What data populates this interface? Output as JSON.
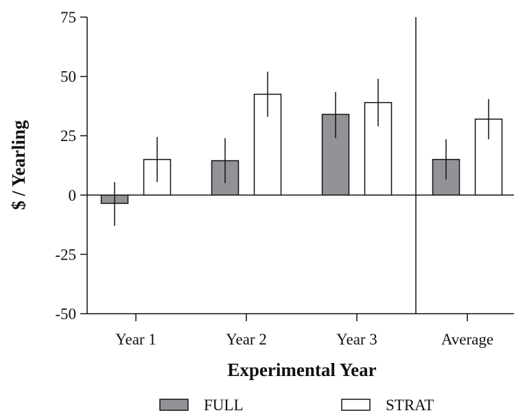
{
  "chart_data": {
    "type": "bar",
    "xlabel": "Experimental Year",
    "ylabel": "$ / Yearling",
    "categories": [
      "Year 1",
      "Year 2",
      "Year 3",
      "Average"
    ],
    "series": [
      {
        "name": "FULL",
        "color": "#929297",
        "values": [
          -3.5,
          14.5,
          34,
          15
        ],
        "err_low": [
          -13,
          5,
          24,
          6.5
        ],
        "err_high": [
          5.5,
          24,
          43.5,
          23.5
        ]
      },
      {
        "name": "STRAT",
        "color": "#ffffff",
        "values": [
          15,
          42.5,
          39,
          32
        ],
        "err_low": [
          5.5,
          33,
          29,
          23.5
        ],
        "err_high": [
          24.5,
          52,
          49,
          40.5
        ]
      }
    ],
    "ylim": [
      -50,
      75
    ],
    "yticks": [
      "75",
      "50",
      "25",
      "0",
      "-25",
      "-50"
    ],
    "ytick_values": [
      75,
      50,
      25,
      0,
      -25,
      -50
    ],
    "grid": false,
    "legend_position": "bottom",
    "separator_between": [
      "Year 3",
      "Average"
    ]
  }
}
